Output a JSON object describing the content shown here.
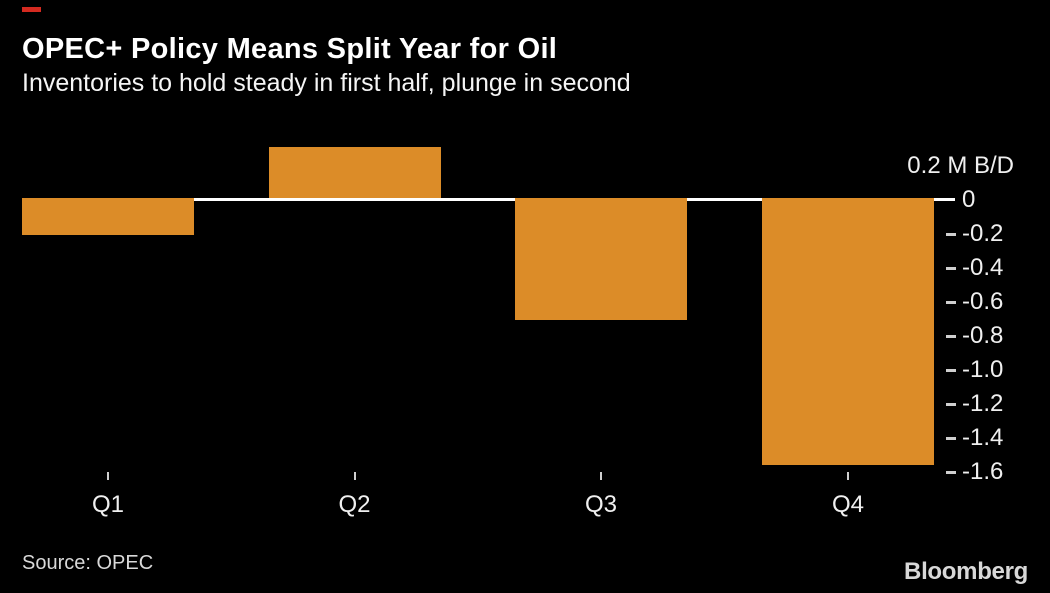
{
  "header": {
    "title": "OPEC+ Policy Means Split Year for Oil",
    "subtitle": "Inventories to hold steady in first half, plunge in second"
  },
  "chart_data": {
    "type": "bar",
    "title": "OPEC+ Policy Means Split Year for Oil",
    "subtitle": "Inventories to hold steady in first half, plunge in second",
    "categories": [
      "Q1",
      "Q2",
      "Q3",
      "Q4"
    ],
    "values": [
      -0.2,
      0.3,
      -0.7,
      -1.55
    ],
    "unit_top_label": "0.2 M B/D",
    "ytick_labels": [
      "0",
      "-0.2",
      "-0.4",
      "-0.6",
      "-0.8",
      "-1.0",
      "-1.2",
      "-1.4",
      "-1.6"
    ],
    "ylim": [
      -1.7,
      0.4
    ],
    "xlabel": "",
    "ylabel": "M B/D",
    "grid": "off",
    "legend": "none",
    "bar_color": "#dc8c28",
    "zero_line_color": "#ffffff",
    "tick_color": "#cfcfcf",
    "background_color": "#000000",
    "text_color": "#efefef",
    "accent_red": "#d42a20"
  },
  "footer": {
    "source": "Source: OPEC",
    "brand": "Bloomberg"
  }
}
